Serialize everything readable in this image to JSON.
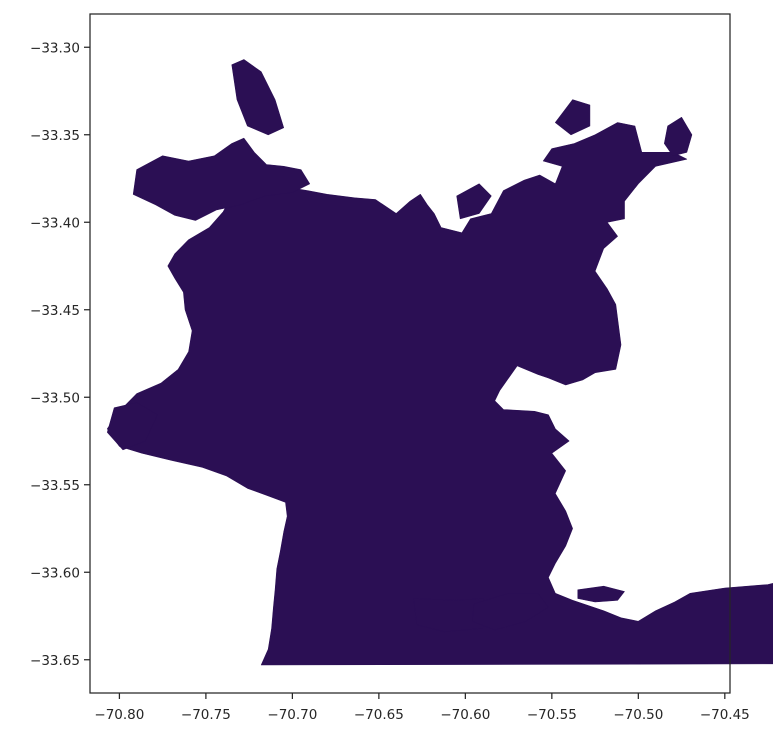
{
  "chart_data": {
    "type": "map",
    "title": "",
    "xlabel": "",
    "ylabel": "",
    "xlim": [
      -70.817,
      -70.447
    ],
    "ylim": [
      -33.669,
      -33.281
    ],
    "grid": false,
    "fill_color": "#2b0f54",
    "axis_color": "#262626",
    "x_ticks": [
      {
        "value": -70.8,
        "label": "−70.80"
      },
      {
        "value": -70.75,
        "label": "−70.75"
      },
      {
        "value": -70.7,
        "label": "−70.70"
      },
      {
        "value": -70.65,
        "label": "−70.65"
      },
      {
        "value": -70.6,
        "label": "−70.60"
      },
      {
        "value": -70.55,
        "label": "−70.55"
      },
      {
        "value": -70.5,
        "label": "−70.50"
      },
      {
        "value": -70.45,
        "label": "−70.45"
      }
    ],
    "y_ticks": [
      {
        "value": -33.3,
        "label": "−33.30"
      },
      {
        "value": -33.35,
        "label": "−33.35"
      },
      {
        "value": -33.4,
        "label": "−33.40"
      },
      {
        "value": -33.45,
        "label": "−33.45"
      },
      {
        "value": -33.5,
        "label": "−33.50"
      },
      {
        "value": -33.55,
        "label": "−33.55"
      },
      {
        "value": -33.6,
        "label": "−33.60"
      },
      {
        "value": -33.65,
        "label": "−33.65"
      }
    ],
    "regions": [
      {
        "name": "urban-area-main",
        "coords": [
          [
            -70.64,
            -33.395
          ],
          [
            -70.632,
            -33.388
          ],
          [
            -70.626,
            -33.384
          ],
          [
            -70.622,
            -33.39
          ],
          [
            -70.618,
            -33.395
          ],
          [
            -70.614,
            -33.403
          ],
          [
            -70.602,
            -33.406
          ],
          [
            -70.597,
            -33.398
          ],
          [
            -70.585,
            -33.395
          ],
          [
            -70.578,
            -33.382
          ],
          [
            -70.566,
            -33.376
          ],
          [
            -70.557,
            -33.373
          ],
          [
            -70.548,
            -33.378
          ],
          [
            -70.544,
            -33.368
          ],
          [
            -70.555,
            -33.365
          ],
          [
            -70.55,
            -33.358
          ],
          [
            -70.537,
            -33.355
          ],
          [
            -70.525,
            -33.35
          ],
          [
            -70.512,
            -33.343
          ],
          [
            -70.502,
            -33.345
          ],
          [
            -70.498,
            -33.36
          ],
          [
            -70.48,
            -33.36
          ],
          [
            -70.472,
            -33.364
          ],
          [
            -70.49,
            -33.368
          ],
          [
            -70.5,
            -33.378
          ],
          [
            -70.508,
            -33.388
          ],
          [
            -70.508,
            -33.398
          ],
          [
            -70.518,
            -33.4
          ],
          [
            -70.512,
            -33.408
          ],
          [
            -70.52,
            -33.415
          ],
          [
            -70.525,
            -33.428
          ],
          [
            -70.518,
            -33.438
          ],
          [
            -70.513,
            -33.447
          ],
          [
            -70.512,
            -33.455
          ],
          [
            -70.51,
            -33.47
          ],
          [
            -70.513,
            -33.484
          ],
          [
            -70.525,
            -33.486
          ],
          [
            -70.532,
            -33.49
          ],
          [
            -70.542,
            -33.493
          ],
          [
            -70.552,
            -33.489
          ],
          [
            -70.558,
            -33.487
          ],
          [
            -70.57,
            -33.482
          ],
          [
            -70.58,
            -33.496
          ],
          [
            -70.583,
            -33.502
          ],
          [
            -70.578,
            -33.507
          ],
          [
            -70.56,
            -33.508
          ],
          [
            -70.552,
            -33.51
          ],
          [
            -70.548,
            -33.518
          ],
          [
            -70.54,
            -33.525
          ],
          [
            -70.55,
            -33.532
          ],
          [
            -70.542,
            -33.542
          ],
          [
            -70.548,
            -33.555
          ],
          [
            -70.542,
            -33.565
          ],
          [
            -70.538,
            -33.575
          ],
          [
            -70.542,
            -33.585
          ],
          [
            -70.548,
            -33.595
          ],
          [
            -70.552,
            -33.603
          ],
          [
            -70.548,
            -33.612
          ],
          [
            -70.538,
            -33.616
          ],
          [
            -70.52,
            -33.622
          ],
          [
            -70.51,
            -33.626
          ],
          [
            -70.5,
            -33.628
          ],
          [
            -70.49,
            -33.622
          ],
          [
            -70.479,
            -33.617
          ],
          [
            -70.47,
            -33.612
          ],
          [
            -70.45,
            -33.609
          ],
          [
            -70.425,
            -33.607
          ],
          [
            -70.408,
            -33.603
          ],
          [
            -70.394,
            -33.601
          ],
          [
            -70.384,
            -33.598
          ],
          [
            -70.368,
            -33.595
          ],
          [
            -70.35,
            -33.593
          ],
          [
            -70.345,
            -33.6
          ],
          [
            -70.337,
            -33.605
          ],
          [
            -70.323,
            -33.608
          ],
          [
            -70.31,
            -33.613
          ],
          [
            -70.3,
            -33.62
          ],
          [
            -70.293,
            -33.632
          ],
          [
            -70.287,
            -33.645
          ],
          [
            -70.282,
            -33.652
          ],
          [
            -70.718,
            -33.653
          ],
          [
            -70.714,
            -33.644
          ],
          [
            -70.712,
            -33.632
          ],
          [
            -70.711,
            -33.62
          ],
          [
            -70.71,
            -33.61
          ],
          [
            -70.709,
            -33.598
          ],
          [
            -70.707,
            -33.588
          ],
          [
            -70.705,
            -33.577
          ],
          [
            -70.703,
            -33.568
          ],
          [
            -70.704,
            -33.56
          ],
          [
            -70.715,
            -33.556
          ],
          [
            -70.726,
            -33.552
          ],
          [
            -70.738,
            -33.545
          ],
          [
            -70.752,
            -33.54
          ],
          [
            -70.77,
            -33.536
          ],
          [
            -70.787,
            -33.532
          ],
          [
            -70.8,
            -33.528
          ],
          [
            -70.807,
            -33.518
          ],
          [
            -70.8,
            -33.508
          ],
          [
            -70.79,
            -33.498
          ],
          [
            -70.776,
            -33.492
          ],
          [
            -70.766,
            -33.484
          ],
          [
            -70.76,
            -33.474
          ],
          [
            -70.758,
            -33.462
          ],
          [
            -70.762,
            -33.45
          ],
          [
            -70.763,
            -33.44
          ],
          [
            -70.768,
            -33.432
          ],
          [
            -70.772,
            -33.425
          ],
          [
            -70.768,
            -33.418
          ],
          [
            -70.76,
            -33.41
          ],
          [
            -70.748,
            -33.403
          ],
          [
            -70.74,
            -33.394
          ],
          [
            -70.735,
            -33.385
          ],
          [
            -70.726,
            -33.383
          ],
          [
            -70.716,
            -33.38
          ],
          [
            -70.703,
            -33.38
          ],
          [
            -70.691,
            -33.382
          ],
          [
            -70.68,
            -33.384
          ],
          [
            -70.664,
            -33.386
          ],
          [
            -70.652,
            -33.387
          ]
        ]
      },
      {
        "name": "urban-area-north-west",
        "coords": [
          [
            -70.79,
            -33.37
          ],
          [
            -70.775,
            -33.362
          ],
          [
            -70.76,
            -33.365
          ],
          [
            -70.745,
            -33.362
          ],
          [
            -70.735,
            -33.355
          ],
          [
            -70.728,
            -33.352
          ],
          [
            -70.722,
            -33.36
          ],
          [
            -70.715,
            -33.367
          ],
          [
            -70.705,
            -33.368
          ],
          [
            -70.695,
            -33.37
          ],
          [
            -70.69,
            -33.378
          ],
          [
            -70.7,
            -33.383
          ],
          [
            -70.716,
            -33.385
          ],
          [
            -70.73,
            -33.39
          ],
          [
            -70.744,
            -33.393
          ],
          [
            -70.756,
            -33.399
          ],
          [
            -70.768,
            -33.396
          ],
          [
            -70.779,
            -33.39
          ],
          [
            -70.792,
            -33.384
          ]
        ]
      },
      {
        "name": "urban-area-north-patch",
        "coords": [
          [
            -70.735,
            -33.31
          ],
          [
            -70.728,
            -33.307
          ],
          [
            -70.718,
            -33.314
          ],
          [
            -70.71,
            -33.33
          ],
          [
            -70.705,
            -33.346
          ],
          [
            -70.714,
            -33.35
          ],
          [
            -70.726,
            -33.345
          ],
          [
            -70.732,
            -33.33
          ]
        ]
      },
      {
        "name": "urban-area-north-east-patch",
        "coords": [
          [
            -70.605,
            -33.385
          ],
          [
            -70.592,
            -33.378
          ],
          [
            -70.585,
            -33.385
          ],
          [
            -70.592,
            -33.395
          ],
          [
            -70.603,
            -33.398
          ]
        ]
      },
      {
        "name": "urban-area-east-patch",
        "coords": [
          [
            -70.538,
            -33.33
          ],
          [
            -70.528,
            -33.333
          ],
          [
            -70.528,
            -33.345
          ],
          [
            -70.539,
            -33.35
          ],
          [
            -70.548,
            -33.343
          ]
        ]
      },
      {
        "name": "urban-area-far-east-patch",
        "coords": [
          [
            -70.483,
            -33.345
          ],
          [
            -70.475,
            -33.34
          ],
          [
            -70.469,
            -33.35
          ],
          [
            -70.472,
            -33.36
          ],
          [
            -70.48,
            -33.362
          ],
          [
            -70.485,
            -33.355
          ]
        ]
      },
      {
        "name": "urban-area-south-west-patch",
        "coords": [
          [
            -70.803,
            -33.506
          ],
          [
            -70.79,
            -33.503
          ],
          [
            -70.778,
            -33.51
          ],
          [
            -70.785,
            -33.525
          ],
          [
            -70.798,
            -33.53
          ],
          [
            -70.807,
            -33.52
          ]
        ]
      },
      {
        "name": "urban-area-south-patch-1",
        "coords": [
          [
            -70.63,
            -33.615
          ],
          [
            -70.605,
            -33.616
          ],
          [
            -70.59,
            -33.615
          ],
          [
            -70.582,
            -33.622
          ],
          [
            -70.59,
            -33.632
          ],
          [
            -70.612,
            -33.634
          ],
          [
            -70.628,
            -33.63
          ]
        ]
      },
      {
        "name": "urban-area-south-patch-2",
        "coords": [
          [
            -70.595,
            -33.618
          ],
          [
            -70.575,
            -33.612
          ],
          [
            -70.558,
            -33.612
          ],
          [
            -70.552,
            -33.62
          ],
          [
            -70.565,
            -33.628
          ],
          [
            -70.583,
            -33.633
          ],
          [
            -70.596,
            -33.628
          ]
        ]
      },
      {
        "name": "urban-area-south-east-patch",
        "coords": [
          [
            -70.535,
            -33.61
          ],
          [
            -70.52,
            -33.608
          ],
          [
            -70.508,
            -33.611
          ],
          [
            -70.512,
            -33.616
          ],
          [
            -70.525,
            -33.617
          ],
          [
            -70.535,
            -33.615
          ]
        ]
      }
    ]
  }
}
